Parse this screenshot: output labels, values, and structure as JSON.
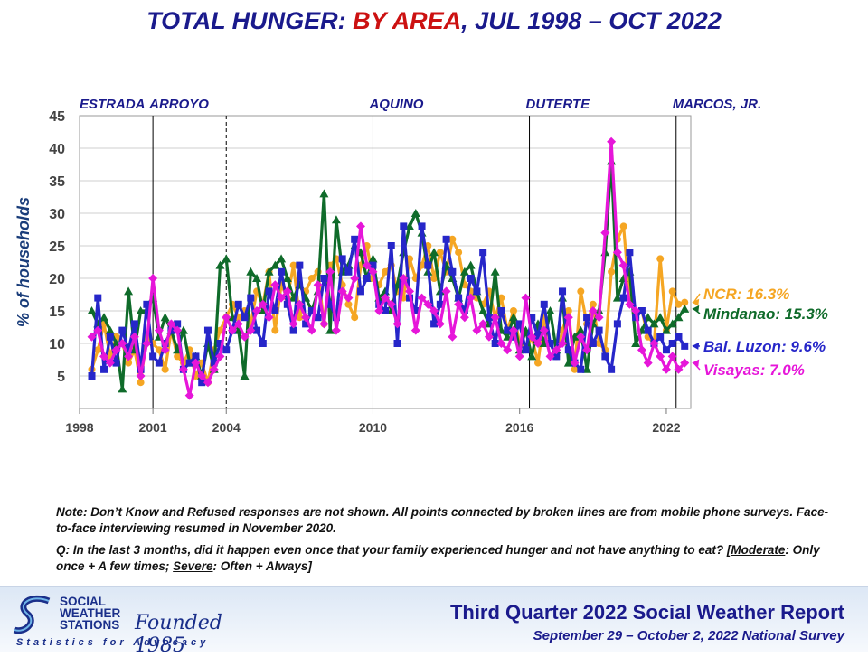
{
  "title_parts": [
    "TOTAL HUNGER: ",
    "BY AREA",
    ", JUL 1998 – OCT 2022"
  ],
  "chart_data": {
    "type": "line",
    "title": "TOTAL HUNGER: BY AREA, JUL 1998 – OCT 2022",
    "ylabel": "% of households",
    "ylim": [
      0,
      45
    ],
    "xlim": [
      1998.0,
      2023.0
    ],
    "y_ticks": [
      5,
      10,
      15,
      20,
      25,
      30,
      35,
      40,
      45
    ],
    "x_ticks": [
      "1998",
      "2001",
      "2004",
      "2010",
      "2016",
      "2022"
    ],
    "x_tick_values": [
      1998.0,
      2001.0,
      2004.0,
      2010.0,
      2016.0,
      2022.0
    ],
    "administrations": [
      {
        "name": "ESTRADA",
        "start": 1998.5
      },
      {
        "name": "ARROYO",
        "start": 2001.0,
        "boundary": "solid"
      },
      {
        "name": "AQUINO",
        "start": 2010.0,
        "boundary": "solid"
      },
      {
        "name": "DUTERTE",
        "start": 2016.4,
        "boundary": "solid"
      },
      {
        "name": "MARCOS, JR.",
        "start": 2022.4,
        "boundary": "solid"
      }
    ],
    "extra_boundary": {
      "at": 2004.0,
      "style": "dashed"
    },
    "series": [
      {
        "name": "NCR",
        "color": "#f5a623",
        "final_label": "NCR: 16.3%",
        "final": 16.3,
        "x": [
          1998.5,
          1998.75,
          1999.0,
          1999.25,
          1999.5,
          1999.75,
          2000.0,
          2000.25,
          2000.5,
          2000.75,
          2001.0,
          2001.25,
          2001.5,
          2001.75,
          2002.0,
          2002.25,
          2002.5,
          2002.75,
          2003.0,
          2003.25,
          2003.5,
          2003.75,
          2004.0,
          2004.25,
          2004.5,
          2004.75,
          2005.0,
          2005.25,
          2005.5,
          2005.75,
          2006.0,
          2006.25,
          2006.5,
          2006.75,
          2007.0,
          2007.25,
          2007.5,
          2007.75,
          2008.0,
          2008.25,
          2008.5,
          2008.75,
          2009.0,
          2009.25,
          2009.5,
          2009.75,
          2010.0,
          2010.25,
          2010.5,
          2010.75,
          2011.0,
          2011.25,
          2011.5,
          2011.75,
          2012.0,
          2012.25,
          2012.5,
          2012.75,
          2013.0,
          2013.25,
          2013.5,
          2013.75,
          2014.0,
          2014.25,
          2014.5,
          2014.75,
          2015.0,
          2015.25,
          2015.5,
          2015.75,
          2016.0,
          2016.25,
          2016.5,
          2016.75,
          2017.0,
          2017.25,
          2017.5,
          2017.75,
          2018.0,
          2018.25,
          2018.5,
          2018.75,
          2019.0,
          2019.25,
          2019.5,
          2019.75,
          2020.0,
          2020.25,
          2020.5,
          2020.75,
          2021.0,
          2021.25,
          2021.5,
          2021.75,
          2022.0,
          2022.25,
          2022.5,
          2022.75
        ],
        "values": [
          6,
          9,
          13,
          8,
          11,
          10,
          7,
          9,
          4,
          11,
          10,
          9,
          6,
          12,
          8,
          7,
          9,
          5,
          7,
          4,
          9,
          12,
          14,
          16,
          14,
          15,
          13,
          18,
          16,
          21,
          12,
          19,
          17,
          22,
          14,
          18,
          20,
          21,
          13,
          22,
          23,
          19,
          16,
          14,
          22,
          25,
          20,
          19,
          21,
          22,
          18,
          17,
          23,
          20,
          22,
          25,
          20,
          24,
          21,
          26,
          24,
          19,
          18,
          17,
          16,
          18,
          14,
          17,
          12,
          15,
          10,
          9,
          11,
          7,
          14,
          10,
          8,
          12,
          15,
          6,
          18,
          13,
          16,
          10,
          9,
          21,
          26,
          28,
          17,
          14,
          15,
          11,
          10,
          23,
          12,
          18,
          16,
          16.3
        ]
      },
      {
        "name": "Mindanao",
        "color": "#0f6b2a",
        "final_label": "Mindanao: 15.3%",
        "final": 15.3,
        "x": [
          1998.5,
          1998.75,
          1999.0,
          1999.25,
          1999.5,
          1999.75,
          2000.0,
          2000.25,
          2000.5,
          2000.75,
          2001.0,
          2001.25,
          2001.5,
          2001.75,
          2002.0,
          2002.25,
          2002.5,
          2002.75,
          2003.0,
          2003.25,
          2003.5,
          2003.75,
          2004.0,
          2004.25,
          2004.5,
          2004.75,
          2005.0,
          2005.25,
          2005.5,
          2005.75,
          2006.0,
          2006.25,
          2006.5,
          2006.75,
          2007.0,
          2007.25,
          2007.5,
          2007.75,
          2008.0,
          2008.25,
          2008.5,
          2008.75,
          2009.0,
          2009.25,
          2009.5,
          2009.75,
          2010.0,
          2010.25,
          2010.5,
          2010.75,
          2011.0,
          2011.25,
          2011.5,
          2011.75,
          2012.0,
          2012.25,
          2012.5,
          2012.75,
          2013.0,
          2013.25,
          2013.5,
          2013.75,
          2014.0,
          2014.25,
          2014.5,
          2014.75,
          2015.0,
          2015.25,
          2015.5,
          2015.75,
          2016.0,
          2016.25,
          2016.5,
          2016.75,
          2017.0,
          2017.25,
          2017.5,
          2017.75,
          2018.0,
          2018.25,
          2018.5,
          2018.75,
          2019.0,
          2019.25,
          2019.5,
          2019.75,
          2020.0,
          2020.25,
          2020.5,
          2020.75,
          2021.0,
          2021.25,
          2021.5,
          2021.75,
          2022.0,
          2022.25,
          2022.5,
          2022.75
        ],
        "values": [
          15,
          13,
          14,
          12,
          10,
          3,
          18,
          9,
          15,
          15,
          17,
          11,
          14,
          12,
          9,
          12,
          7,
          8,
          5,
          10,
          6,
          22,
          23,
          14,
          12,
          5,
          21,
          20,
          15,
          21,
          22,
          23,
          20,
          17,
          19,
          17,
          15,
          18,
          33,
          12,
          29,
          21,
          22,
          25,
          24,
          20,
          23,
          17,
          18,
          15,
          19,
          24,
          28,
          30,
          27,
          21,
          24,
          18,
          22,
          20,
          17,
          21,
          22,
          18,
          15,
          13,
          21,
          12,
          11,
          14,
          9,
          12,
          8,
          13,
          10,
          15,
          9,
          17,
          7,
          11,
          12,
          6,
          13,
          15,
          24,
          38,
          17,
          20,
          21,
          10,
          12,
          14,
          13,
          14,
          12,
          13,
          14,
          15.3
        ]
      },
      {
        "name": "Bal. Luzon",
        "color": "#2626c9",
        "final_label": "Bal. Luzon: 9.6%",
        "final": 9.6,
        "x": [
          1998.5,
          1998.75,
          1999.0,
          1999.25,
          1999.5,
          1999.75,
          2000.0,
          2000.25,
          2000.5,
          2000.75,
          2001.0,
          2001.25,
          2001.5,
          2001.75,
          2002.0,
          2002.25,
          2002.5,
          2002.75,
          2003.0,
          2003.25,
          2003.5,
          2003.75,
          2004.0,
          2004.25,
          2004.5,
          2004.75,
          2005.0,
          2005.25,
          2005.5,
          2005.75,
          2006.0,
          2006.25,
          2006.5,
          2006.75,
          2007.0,
          2007.25,
          2007.5,
          2007.75,
          2008.0,
          2008.25,
          2008.5,
          2008.75,
          2009.0,
          2009.25,
          2009.5,
          2009.75,
          2010.0,
          2010.25,
          2010.5,
          2010.75,
          2011.0,
          2011.25,
          2011.5,
          2011.75,
          2012.0,
          2012.25,
          2012.5,
          2012.75,
          2013.0,
          2013.25,
          2013.5,
          2013.75,
          2014.0,
          2014.25,
          2014.5,
          2014.75,
          2015.0,
          2015.25,
          2015.5,
          2015.75,
          2016.0,
          2016.25,
          2016.5,
          2016.75,
          2017.0,
          2017.25,
          2017.5,
          2017.75,
          2018.0,
          2018.25,
          2018.5,
          2018.75,
          2019.0,
          2019.25,
          2019.5,
          2019.75,
          2020.0,
          2020.25,
          2020.5,
          2020.75,
          2021.0,
          2021.25,
          2021.5,
          2021.75,
          2022.0,
          2022.25,
          2022.5,
          2022.75
        ],
        "values": [
          5,
          17,
          6,
          11,
          7,
          12,
          9,
          13,
          6,
          16,
          8,
          7,
          10,
          12,
          13,
          6,
          7,
          8,
          4,
          12,
          7,
          10,
          9,
          12,
          16,
          14,
          17,
          12,
          10,
          18,
          15,
          21,
          16,
          12,
          22,
          13,
          15,
          14,
          20,
          16,
          14,
          23,
          21,
          26,
          18,
          20,
          22,
          16,
          15,
          25,
          10,
          28,
          17,
          15,
          28,
          22,
          13,
          16,
          26,
          21,
          17,
          15,
          20,
          18,
          24,
          14,
          10,
          15,
          12,
          11,
          13,
          9,
          14,
          11,
          16,
          10,
          8,
          18,
          9,
          7,
          6,
          14,
          10,
          12,
          8,
          6,
          13,
          17,
          24,
          14,
          15,
          12,
          10,
          11,
          9,
          10,
          11,
          9.6
        ]
      },
      {
        "name": "Visayas",
        "color": "#e616d9",
        "final_label": "Visayas: 7.0%",
        "final": 7.0,
        "x": [
          1998.5,
          1998.75,
          1999.0,
          1999.25,
          1999.5,
          1999.75,
          2000.0,
          2000.25,
          2000.5,
          2000.75,
          2001.0,
          2001.25,
          2001.5,
          2001.75,
          2002.0,
          2002.25,
          2002.5,
          2002.75,
          2003.0,
          2003.25,
          2003.5,
          2003.75,
          2004.0,
          2004.25,
          2004.5,
          2004.75,
          2005.0,
          2005.25,
          2005.5,
          2005.75,
          2006.0,
          2006.25,
          2006.5,
          2006.75,
          2007.0,
          2007.25,
          2007.5,
          2007.75,
          2008.0,
          2008.25,
          2008.5,
          2008.75,
          2009.0,
          2009.25,
          2009.5,
          2009.75,
          2010.0,
          2010.25,
          2010.5,
          2010.75,
          2011.0,
          2011.25,
          2011.5,
          2011.75,
          2012.0,
          2012.25,
          2012.5,
          2012.75,
          2013.0,
          2013.25,
          2013.5,
          2013.75,
          2014.0,
          2014.25,
          2014.5,
          2014.75,
          2015.0,
          2015.25,
          2015.5,
          2015.75,
          2016.0,
          2016.25,
          2016.5,
          2016.75,
          2017.0,
          2017.25,
          2017.5,
          2017.75,
          2018.0,
          2018.25,
          2018.5,
          2018.75,
          2019.0,
          2019.25,
          2019.5,
          2019.75,
          2020.0,
          2020.25,
          2020.5,
          2020.75,
          2021.0,
          2021.25,
          2021.5,
          2021.75,
          2022.0,
          2022.25,
          2022.5,
          2022.75
        ],
        "values": [
          11,
          12,
          8,
          7,
          9,
          10,
          8,
          11,
          5,
          10,
          20,
          12,
          9,
          13,
          12,
          6,
          2,
          7,
          5,
          4,
          6,
          8,
          14,
          12,
          13,
          11,
          12,
          15,
          16,
          14,
          19,
          17,
          18,
          13,
          16,
          14,
          12,
          19,
          13,
          21,
          12,
          18,
          17,
          20,
          28,
          22,
          21,
          15,
          17,
          16,
          13,
          20,
          18,
          12,
          17,
          16,
          15,
          13,
          18,
          11,
          16,
          14,
          17,
          12,
          13,
          11,
          14,
          10,
          9,
          12,
          8,
          17,
          11,
          10,
          12,
          8,
          9,
          10,
          14,
          7,
          11,
          9,
          15,
          14,
          27,
          41,
          24,
          22,
          16,
          15,
          9,
          7,
          10,
          8,
          6,
          8,
          6,
          7.0
        ]
      }
    ]
  },
  "notes": {
    "note": "Note: Don’t Know and Refused responses are not shown. All points connected by broken lines are from mobile phone surveys. Face-to-face interviewing resumed in November 2020.",
    "q_prefix": "Q: In the last 3 months, did it happen even once that your family experienced hunger and not have anything to eat? [",
    "moderate": "Moderate",
    "moderate_def": ": Only once + A few times; ",
    "severe": "Severe",
    "severe_def": ": Often + Always]"
  },
  "footer": {
    "logo_lines": [
      "SOCIAL",
      "WEATHER",
      "STATIONS"
    ],
    "founded": "Founded 1985",
    "tagline": "Statistics for Advocacy",
    "report_title": "Third Quarter 2022 Social Weather Report",
    "report_subtitle": "September 29 – October 2, 2022 National Survey"
  },
  "colors": {
    "title_blue": "#1a1a8c",
    "title_red": "#cc1111"
  }
}
